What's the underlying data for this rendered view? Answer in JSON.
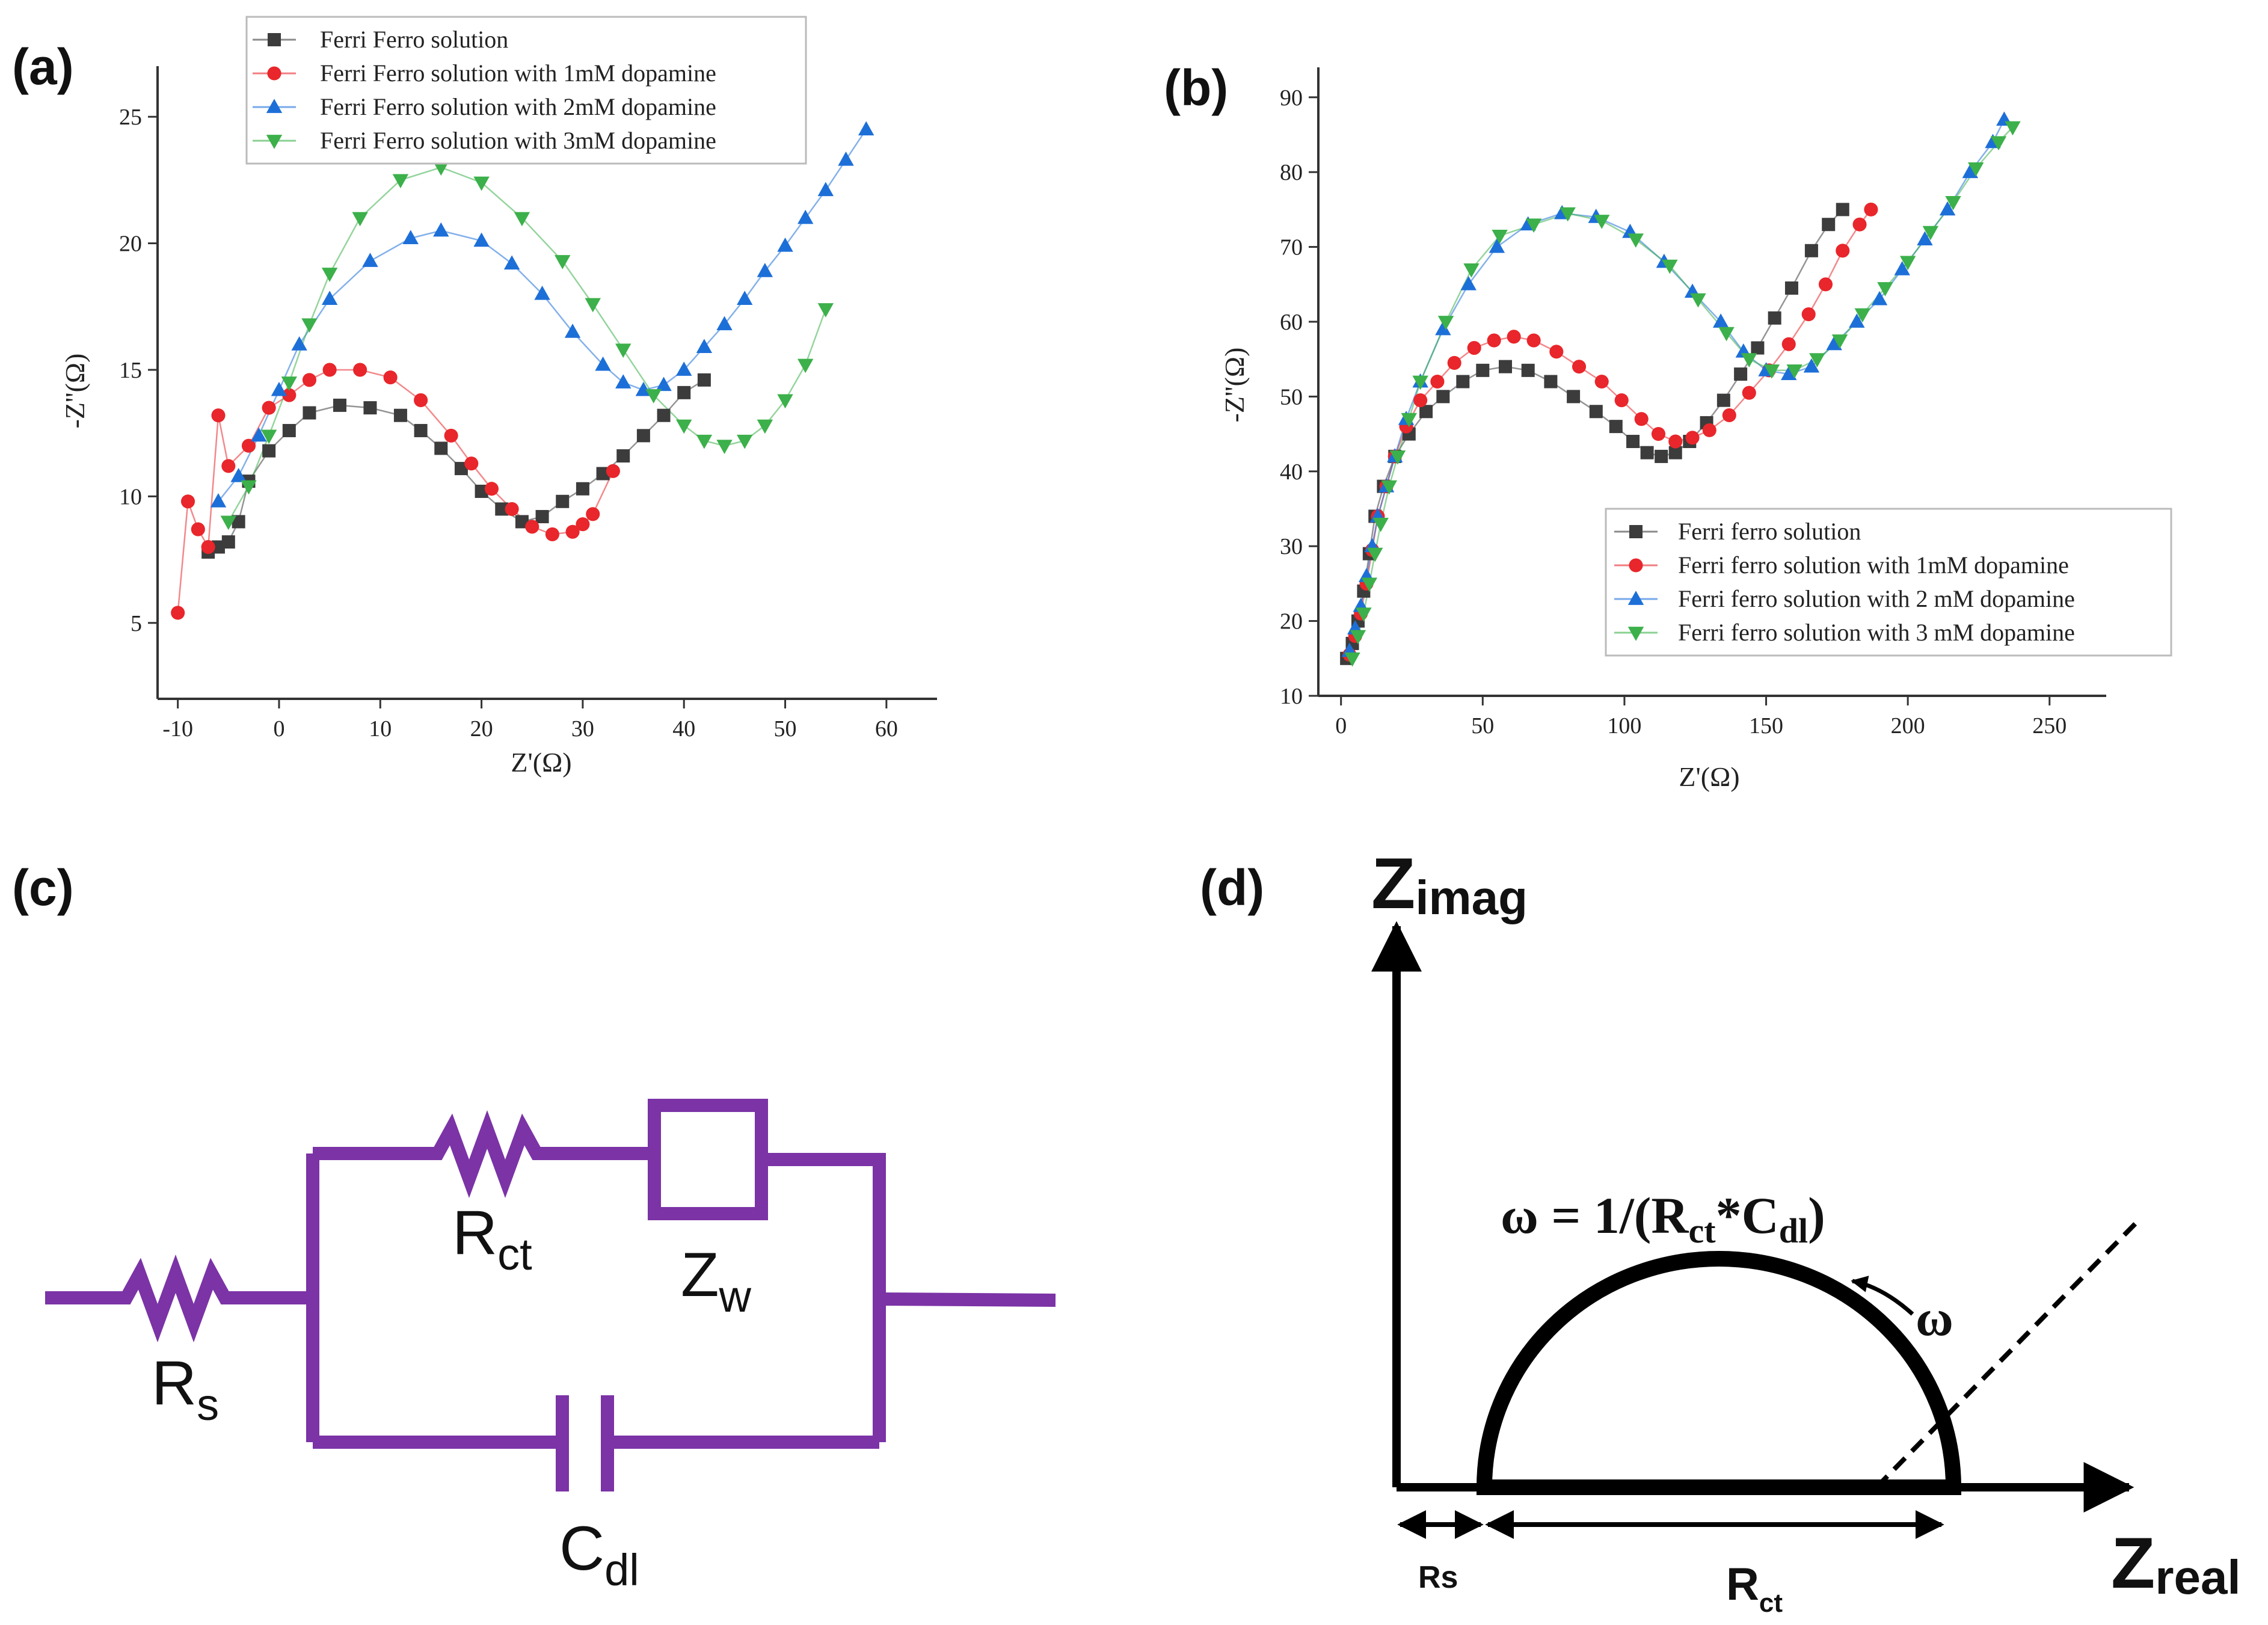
{
  "panel_labels": {
    "a": "(a)",
    "b": "(b)",
    "c": "(c)",
    "d": "(d)"
  },
  "colors": {
    "black": "#3c3c3c",
    "red": "#e8262b",
    "blue": "#1d6fd8",
    "green": "#3cb04a",
    "circuit": "#7b33a6"
  },
  "chart_data": [
    {
      "type": "scatter",
      "panel": "(a)",
      "xlabel": "Z'(Ω)",
      "ylabel": "-Z''(Ω)",
      "xlim": [
        -12,
        65
      ],
      "ylim": [
        2,
        27
      ],
      "xticks": [
        -10,
        0,
        10,
        20,
        30,
        40,
        50,
        60
      ],
      "xtick_labels": [
        "-10",
        "0",
        "10",
        "20",
        "30",
        "40",
        "50",
        "60"
      ],
      "yticks": [
        5,
        10,
        15,
        20,
        25
      ],
      "ytick_labels": [
        "5",
        "10",
        "15",
        "20",
        "25"
      ],
      "legend_position": "top-left",
      "series": [
        {
          "name": "Ferri Ferro solution",
          "marker": "square",
          "color": "#3c3c3c",
          "points": [
            [
              -7,
              7.8
            ],
            [
              -6,
              8.0
            ],
            [
              -5,
              8.2
            ],
            [
              -4,
              9.0
            ],
            [
              -3,
              10.6
            ],
            [
              -1,
              11.8
            ],
            [
              1,
              12.6
            ],
            [
              3,
              13.3
            ],
            [
              6,
              13.6
            ],
            [
              9,
              13.5
            ],
            [
              12,
              13.2
            ],
            [
              14,
              12.6
            ],
            [
              16,
              11.9
            ],
            [
              18,
              11.1
            ],
            [
              20,
              10.2
            ],
            [
              22,
              9.5
            ],
            [
              24,
              9.0
            ],
            [
              26,
              9.2
            ],
            [
              28,
              9.8
            ],
            [
              30,
              10.3
            ],
            [
              32,
              10.9
            ],
            [
              34,
              11.6
            ],
            [
              36,
              12.4
            ],
            [
              38,
              13.2
            ],
            [
              40,
              14.1
            ],
            [
              42,
              14.6
            ]
          ]
        },
        {
          "name": "Ferri Ferro solution with 1mM dopamine",
          "marker": "circle",
          "color": "#e8262b",
          "points": [
            [
              -10,
              5.4
            ],
            [
              -9,
              9.8
            ],
            [
              -8,
              8.7
            ],
            [
              -7,
              8.0
            ],
            [
              -6,
              13.2
            ],
            [
              -5,
              11.2
            ],
            [
              -3,
              12.0
            ],
            [
              -1,
              13.5
            ],
            [
              1,
              14.0
            ],
            [
              3,
              14.6
            ],
            [
              5,
              15.0
            ],
            [
              8,
              15.0
            ],
            [
              11,
              14.7
            ],
            [
              14,
              13.8
            ],
            [
              17,
              12.4
            ],
            [
              19,
              11.3
            ],
            [
              21,
              10.3
            ],
            [
              23,
              9.5
            ],
            [
              25,
              8.8
            ],
            [
              27,
              8.5
            ],
            [
              29,
              8.6
            ],
            [
              30,
              8.9
            ],
            [
              31,
              9.3
            ],
            [
              33,
              11.0
            ]
          ]
        },
        {
          "name": "Ferri Ferro solution with 2mM dopamine",
          "marker": "triangle-up",
          "color": "#1d6fd8",
          "points": [
            [
              -6,
              9.8
            ],
            [
              -4,
              10.8
            ],
            [
              -2,
              12.4
            ],
            [
              0,
              14.2
            ],
            [
              2,
              16.0
            ],
            [
              5,
              17.8
            ],
            [
              9,
              19.3
            ],
            [
              13,
              20.2
            ],
            [
              16,
              20.5
            ],
            [
              20,
              20.1
            ],
            [
              23,
              19.2
            ],
            [
              26,
              18.0
            ],
            [
              29,
              16.5
            ],
            [
              32,
              15.2
            ],
            [
              34,
              14.5
            ],
            [
              36,
              14.2
            ],
            [
              38,
              14.4
            ],
            [
              40,
              15.0
            ],
            [
              42,
              15.9
            ],
            [
              44,
              16.8
            ],
            [
              46,
              17.8
            ],
            [
              48,
              18.9
            ],
            [
              50,
              19.9
            ],
            [
              52,
              21.0
            ],
            [
              54,
              22.1
            ],
            [
              56,
              23.3
            ],
            [
              58,
              24.5
            ]
          ]
        },
        {
          "name": "Ferri Ferro solution with 3mM dopamine",
          "marker": "triangle-down",
          "color": "#3cb04a",
          "points": [
            [
              -5,
              9.0
            ],
            [
              -3,
              10.4
            ],
            [
              -1,
              12.4
            ],
            [
              1,
              14.5
            ],
            [
              3,
              16.8
            ],
            [
              5,
              18.8
            ],
            [
              8,
              21.0
            ],
            [
              12,
              22.5
            ],
            [
              16,
              23.0
            ],
            [
              20,
              22.4
            ],
            [
              24,
              21.0
            ],
            [
              28,
              19.3
            ],
            [
              31,
              17.6
            ],
            [
              34,
              15.8
            ],
            [
              37,
              14.0
            ],
            [
              40,
              12.8
            ],
            [
              42,
              12.2
            ],
            [
              44,
              12.0
            ],
            [
              46,
              12.2
            ],
            [
              48,
              12.8
            ],
            [
              50,
              13.8
            ],
            [
              52,
              15.2
            ],
            [
              54,
              17.4
            ]
          ]
        }
      ]
    },
    {
      "type": "scatter",
      "panel": "(b)",
      "xlabel": "Z'(Ω)",
      "ylabel": "-Z''(Ω)",
      "xlim": [
        -8,
        270
      ],
      "ylim": [
        10,
        94
      ],
      "xticks": [
        0,
        50,
        100,
        150,
        200,
        250
      ],
      "xtick_labels": [
        "0",
        "50",
        "100",
        "150",
        "200",
        "250"
      ],
      "yticks": [
        10,
        20,
        30,
        40,
        50,
        60,
        70,
        80,
        90
      ],
      "ytick_labels": [
        "10",
        "20",
        "30",
        "40",
        "50",
        "60",
        "70",
        "80",
        "90"
      ],
      "legend_position": "bottom-right",
      "series": [
        {
          "name": "Ferri ferro solution",
          "marker": "square",
          "color": "#3c3c3c",
          "points": [
            [
              2,
              15
            ],
            [
              4,
              17
            ],
            [
              6,
              20
            ],
            [
              8,
              24
            ],
            [
              10,
              29
            ],
            [
              12,
              34
            ],
            [
              15,
              38
            ],
            [
              19,
              42
            ],
            [
              24,
              45
            ],
            [
              30,
              48
            ],
            [
              36,
              50
            ],
            [
              43,
              52
            ],
            [
              50,
              53.5
            ],
            [
              58,
              54
            ],
            [
              66,
              53.5
            ],
            [
              74,
              52
            ],
            [
              82,
              50
            ],
            [
              90,
              48
            ],
            [
              97,
              46
            ],
            [
              103,
              44
            ],
            [
              108,
              42.5
            ],
            [
              113,
              42
            ],
            [
              118,
              42.5
            ],
            [
              123,
              44
            ],
            [
              129,
              46.5
            ],
            [
              135,
              49.5
            ],
            [
              141,
              53
            ],
            [
              147,
              56.5
            ],
            [
              153,
              60.5
            ],
            [
              159,
              64.5
            ],
            [
              166,
              69.5
            ],
            [
              172,
              73
            ],
            [
              177,
              75
            ]
          ]
        },
        {
          "name": "Ferri ferro solution with 1mM dopamine",
          "marker": "circle",
          "color": "#e8262b",
          "points": [
            [
              3,
              15.5
            ],
            [
              5,
              18
            ],
            [
              7,
              21
            ],
            [
              9,
              25
            ],
            [
              11,
              29.5
            ],
            [
              13,
              34
            ],
            [
              16,
              38
            ],
            [
              19,
              42
            ],
            [
              23,
              46
            ],
            [
              28,
              49.5
            ],
            [
              34,
              52
            ],
            [
              40,
              54.5
            ],
            [
              47,
              56.5
            ],
            [
              54,
              57.5
            ],
            [
              61,
              58
            ],
            [
              68,
              57.5
            ],
            [
              76,
              56
            ],
            [
              84,
              54
            ],
            [
              92,
              52
            ],
            [
              99,
              49.5
            ],
            [
              106,
              47
            ],
            [
              112,
              45
            ],
            [
              118,
              44
            ],
            [
              124,
              44.5
            ],
            [
              130,
              45.5
            ],
            [
              137,
              47.5
            ],
            [
              144,
              50.5
            ],
            [
              151,
              53.5
            ],
            [
              158,
              57
            ],
            [
              165,
              61
            ],
            [
              171,
              65
            ],
            [
              177,
              69.5
            ],
            [
              183,
              73
            ],
            [
              187,
              75
            ]
          ]
        },
        {
          "name": "Ferri ferro solution with 2 mM dopamine",
          "marker": "triangle-up",
          "color": "#1d6fd8",
          "points": [
            [
              3,
              16
            ],
            [
              5,
              19
            ],
            [
              7,
              22
            ],
            [
              9,
              26
            ],
            [
              11,
              30
            ],
            [
              13,
              34
            ],
            [
              16,
              38
            ],
            [
              19,
              42
            ],
            [
              23,
              47
            ],
            [
              28,
              52
            ],
            [
              36,
              59
            ],
            [
              45,
              65
            ],
            [
              55,
              70
            ],
            [
              66,
              73
            ],
            [
              78,
              74.5
            ],
            [
              90,
              74
            ],
            [
              102,
              72
            ],
            [
              114,
              68
            ],
            [
              124,
              64
            ],
            [
              134,
              60
            ],
            [
              142,
              56
            ],
            [
              150,
              53.5
            ],
            [
              158,
              53
            ],
            [
              166,
              54
            ],
            [
              174,
              57
            ],
            [
              182,
              60
            ],
            [
              190,
              63
            ],
            [
              198,
              67
            ],
            [
              206,
              71
            ],
            [
              214,
              75
            ],
            [
              222,
              80
            ],
            [
              230,
              84
            ],
            [
              234,
              87
            ]
          ]
        },
        {
          "name": "Ferri ferro solution with 3 mM dopamine",
          "marker": "triangle-down",
          "color": "#3cb04a",
          "points": [
            [
              4,
              15
            ],
            [
              6,
              18
            ],
            [
              8,
              21
            ],
            [
              10,
              25
            ],
            [
              12,
              29
            ],
            [
              14,
              33
            ],
            [
              17,
              38
            ],
            [
              20,
              42
            ],
            [
              24,
              47
            ],
            [
              28,
              52
            ],
            [
              37,
              60
            ],
            [
              46,
              67
            ],
            [
              56,
              71.5
            ],
            [
              68,
              73
            ],
            [
              80,
              74.5
            ],
            [
              92,
              73.5
            ],
            [
              104,
              71
            ],
            [
              116,
              67.5
            ],
            [
              126,
              63
            ],
            [
              136,
              58.5
            ],
            [
              144,
              55
            ],
            [
              152,
              53.5
            ],
            [
              160,
              53.5
            ],
            [
              168,
              55
            ],
            [
              176,
              57.5
            ],
            [
              184,
              61
            ],
            [
              192,
              64.5
            ],
            [
              200,
              68
            ],
            [
              208,
              72
            ],
            [
              216,
              76
            ],
            [
              224,
              80.5
            ],
            [
              232,
              84
            ],
            [
              237,
              86
            ]
          ]
        }
      ]
    }
  ],
  "circuit": {
    "rs": {
      "main": "R",
      "sub": "s"
    },
    "rct": {
      "main": "R",
      "sub": "ct"
    },
    "zw": {
      "main": "Z",
      "sub": "w"
    },
    "cdl": {
      "main": "C",
      "sub": "dl"
    }
  },
  "nyquist": {
    "zimag": {
      "main": "Z",
      "sub": "imag"
    },
    "zreal": {
      "main": "Z",
      "sub": "real"
    },
    "equation": {
      "part1": "ω = 1/(R",
      "sub1": "ct",
      "part2": "*C",
      "sub2": "dl",
      "part3": ")"
    },
    "omega": "ω",
    "rs_label": "Rs",
    "rct_label": {
      "main": "R",
      "sub": "ct"
    }
  }
}
